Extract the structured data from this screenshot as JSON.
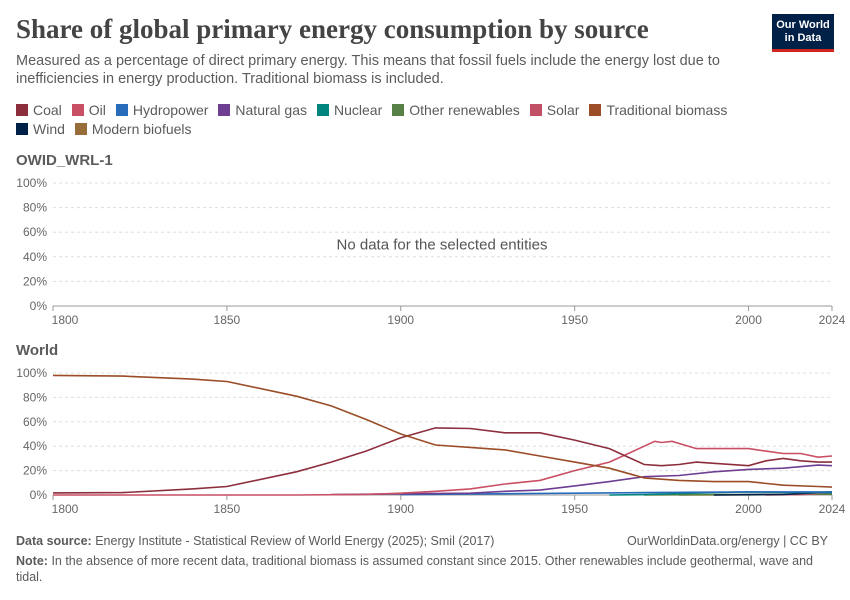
{
  "header": {
    "title": "Share of global primary energy consumption by source",
    "subtitle": "Measured as a percentage of direct primary energy. This means that fossil fuels include the energy lost due to inefficiencies in energy production. Traditional biomass is included.",
    "logo": "Our World in Data"
  },
  "legend": [
    {
      "name": "Coal",
      "color": "#8c2e3c"
    },
    {
      "name": "Oil",
      "color": "#c94f65"
    },
    {
      "name": "Hydropower",
      "color": "#286bbb"
    },
    {
      "name": "Natural gas",
      "color": "#6d3e91"
    },
    {
      "name": "Nuclear",
      "color": "#00847e"
    },
    {
      "name": "Other renewables",
      "color": "#578145"
    },
    {
      "name": "Solar",
      "color": "#c15065"
    },
    {
      "name": "Traditional biomass",
      "color": "#9a4d27"
    },
    {
      "name": "Wind",
      "color": "#002147"
    },
    {
      "name": "Modern biofuels",
      "color": "#996d39"
    }
  ],
  "chart_data": [
    {
      "type": "line",
      "title": "OWID_WRL-1",
      "message": "No data for the selected entities",
      "xlim": [
        1800,
        2024
      ],
      "ylim": [
        0,
        100
      ],
      "xticks": [
        1800,
        1850,
        1900,
        1950,
        2000,
        2024
      ],
      "yticks": [
        "0%",
        "20%",
        "40%",
        "60%",
        "80%",
        "100%"
      ],
      "series": []
    },
    {
      "type": "line",
      "title": "World",
      "xlim": [
        1800,
        2024
      ],
      "ylim": [
        0,
        100
      ],
      "xticks": [
        1800,
        1850,
        1900,
        1950,
        2000,
        2024
      ],
      "yticks": [
        "0%",
        "20%",
        "40%",
        "60%",
        "80%",
        "100%"
      ],
      "series": [
        {
          "name": "Traditional biomass",
          "color": "#9a4d27",
          "points": [
            [
              1800,
              98
            ],
            [
              1820,
              97.5
            ],
            [
              1840,
              95
            ],
            [
              1850,
              93
            ],
            [
              1870,
              81
            ],
            [
              1880,
              73
            ],
            [
              1890,
              62
            ],
            [
              1900,
              50
            ],
            [
              1910,
              41
            ],
            [
              1920,
              39
            ],
            [
              1930,
              37
            ],
            [
              1940,
              32
            ],
            [
              1950,
              27
            ],
            [
              1960,
              22
            ],
            [
              1970,
              14
            ],
            [
              1980,
              12
            ],
            [
              1990,
              11
            ],
            [
              2000,
              11
            ],
            [
              2010,
              8
            ],
            [
              2020,
              7
            ],
            [
              2024,
              6.5
            ]
          ]
        },
        {
          "name": "Coal",
          "color": "#8c2e3c",
          "points": [
            [
              1800,
              1.7
            ],
            [
              1820,
              2
            ],
            [
              1840,
              5
            ],
            [
              1850,
              7
            ],
            [
              1870,
              19
            ],
            [
              1880,
              27
            ],
            [
              1890,
              36
            ],
            [
              1900,
              47
            ],
            [
              1910,
              55
            ],
            [
              1920,
              54.5
            ],
            [
              1930,
              51
            ],
            [
              1940,
              51
            ],
            [
              1950,
              45
            ],
            [
              1960,
              38
            ],
            [
              1970,
              25
            ],
            [
              1975,
              24
            ],
            [
              1980,
              25
            ],
            [
              1985,
              27
            ],
            [
              1990,
              26
            ],
            [
              2000,
              24
            ],
            [
              2005,
              28
            ],
            [
              2010,
              30
            ],
            [
              2015,
              28
            ],
            [
              2020,
              27
            ],
            [
              2024,
              27
            ]
          ]
        },
        {
          "name": "Oil",
          "color": "#c94f65",
          "points": [
            [
              1800,
              0
            ],
            [
              1870,
              0
            ],
            [
              1890,
              0.5
            ],
            [
              1900,
              1.5
            ],
            [
              1910,
              3
            ],
            [
              1920,
              5
            ],
            [
              1930,
              9
            ],
            [
              1940,
              12
            ],
            [
              1950,
              20
            ],
            [
              1960,
              27
            ],
            [
              1970,
              40
            ],
            [
              1973,
              44
            ],
            [
              1975,
              43
            ],
            [
              1978,
              44
            ],
            [
              1985,
              38
            ],
            [
              1990,
              38
            ],
            [
              2000,
              38
            ],
            [
              2005,
              36
            ],
            [
              2010,
              34
            ],
            [
              2015,
              34
            ],
            [
              2020,
              31
            ],
            [
              2024,
              32
            ]
          ]
        },
        {
          "name": "Natural gas",
          "color": "#6d3e91",
          "points": [
            [
              1880,
              0.3
            ],
            [
              1900,
              1
            ],
            [
              1920,
              1.5
            ],
            [
              1930,
              3
            ],
            [
              1940,
              4
            ],
            [
              1950,
              7.5
            ],
            [
              1960,
              11
            ],
            [
              1970,
              15
            ],
            [
              1980,
              16
            ],
            [
              1990,
              19
            ],
            [
              2000,
              21
            ],
            [
              2010,
              22
            ],
            [
              2020,
              24.5
            ],
            [
              2024,
              24
            ]
          ]
        },
        {
          "name": "Hydropower",
          "color": "#286bbb",
          "points": [
            [
              1900,
              0.3
            ],
            [
              1950,
              1.5
            ],
            [
              1970,
              2
            ],
            [
              2000,
              2.5
            ],
            [
              2024,
              2.5
            ]
          ]
        },
        {
          "name": "Nuclear",
          "color": "#00847e",
          "points": [
            [
              1960,
              0
            ],
            [
              1970,
              0.3
            ],
            [
              1990,
              2
            ],
            [
              2000,
              2.5
            ],
            [
              2024,
              1.8
            ]
          ]
        },
        {
          "name": "Wind",
          "color": "#002147",
          "points": [
            [
              1990,
              0
            ],
            [
              2010,
              0.5
            ],
            [
              2024,
              2.5
            ]
          ]
        },
        {
          "name": "Solar",
          "color": "#c15065",
          "points": [
            [
              2005,
              0
            ],
            [
              2015,
              0.3
            ],
            [
              2024,
              2
            ]
          ]
        },
        {
          "name": "Other renewables",
          "color": "#578145",
          "points": [
            [
              1970,
              0.1
            ],
            [
              2000,
              0.5
            ],
            [
              2024,
              0.8
            ]
          ]
        },
        {
          "name": "Modern biofuels",
          "color": "#996d39",
          "points": [
            [
              1980,
              0
            ],
            [
              2000,
              0.2
            ],
            [
              2024,
              0.7
            ]
          ]
        }
      ]
    }
  ],
  "footer": {
    "source_label": "Data source:",
    "source": "Energy Institute - Statistical Review of World Energy (2025); Smil (2017)",
    "url": "OurWorldinData.org/energy | CC BY",
    "note_label": "Note:",
    "note": "In the absence of more recent data, traditional biomass is assumed constant since 2015. Other renewables include geothermal, wave and tidal."
  }
}
